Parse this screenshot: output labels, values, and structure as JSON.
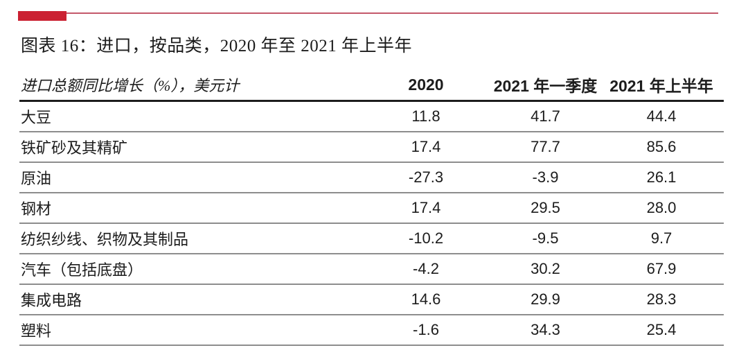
{
  "accent": {
    "bar_color": "#cb2132",
    "line_color": "#c4586a"
  },
  "figure": {
    "title": "图表 16：进口，按品类，2020 年至 2021 年上半年"
  },
  "chart_data": {
    "type": "table",
    "title": "图表 16：进口，按品类，2020 年至 2021 年上半年",
    "measure_label": "进口总额同比增长（%），美元计",
    "columns": [
      "2020",
      "2021 年一季度",
      "2021 年上半年"
    ],
    "rows": [
      {
        "label": "大豆",
        "values": [
          "11.8",
          "41.7",
          "44.4"
        ]
      },
      {
        "label": "铁矿砂及其精矿",
        "values": [
          "17.4",
          "77.7",
          "85.6"
        ]
      },
      {
        "label": "原油",
        "values": [
          "-27.3",
          "-3.9",
          "26.1"
        ]
      },
      {
        "label": "钢材",
        "values": [
          "17.4",
          "29.5",
          "28.0"
        ]
      },
      {
        "label": "纺织纱线、织物及其制品",
        "values": [
          "-10.2",
          "-9.5",
          "9.7"
        ]
      },
      {
        "label": "汽车（包括底盘）",
        "values": [
          "-4.2",
          "30.2",
          "67.9"
        ]
      },
      {
        "label": "集成电路",
        "values": [
          "14.6",
          "29.9",
          "28.3"
        ]
      },
      {
        "label": "塑料",
        "values": [
          "-1.6",
          "34.3",
          "25.4"
        ]
      }
    ]
  }
}
